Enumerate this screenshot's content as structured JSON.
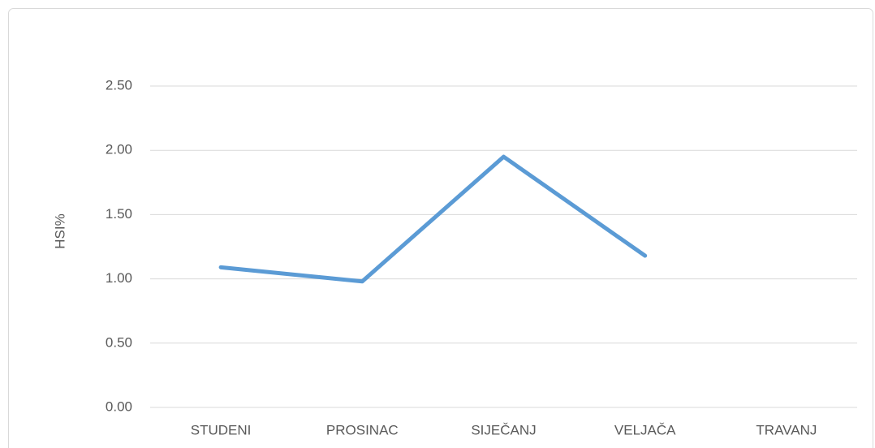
{
  "chart_data": {
    "type": "line",
    "y_label": "HSI%",
    "categories": [
      "STUDENI",
      "PROSINAC",
      "SIJEČANJ",
      "VELJAČA",
      "TRAVANJ"
    ],
    "values": [
      1.09,
      0.98,
      1.95,
      1.18,
      null
    ],
    "color": "#5b9bd5",
    "ylim": [
      0,
      2.5
    ],
    "yticks": [
      {
        "value": 0,
        "label": "0.00"
      },
      {
        "value": 0.5,
        "label": "0.50"
      },
      {
        "value": 1,
        "label": "1.00"
      },
      {
        "value": 1.5,
        "label": "1.50"
      },
      {
        "value": 2,
        "label": "2.00"
      },
      {
        "value": 2.5,
        "label": "2.50"
      }
    ],
    "grid": true
  }
}
